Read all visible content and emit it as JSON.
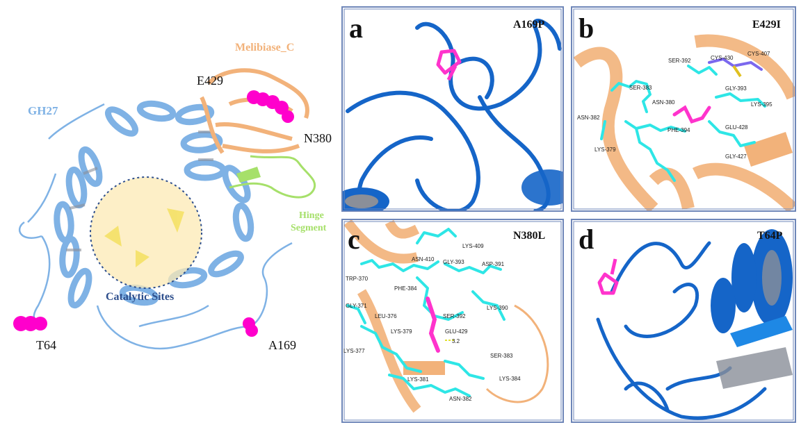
{
  "overview": {
    "domain_gh27": "GH27",
    "domain_melibiase": "Melibiase_C",
    "hinge_line1": "Hinge",
    "hinge_line2": "Segment",
    "catalytic": "Catalytic Sites",
    "mutation_e429": "E429",
    "mutation_n380": "N380",
    "mutation_t64": "T64",
    "mutation_a169": "A169"
  },
  "panels": [
    {
      "letter": "a",
      "mutation": "A169P",
      "residues": []
    },
    {
      "letter": "b",
      "mutation": "E429I",
      "residues": [
        "SER-392",
        "CYS-430",
        "CYS-407",
        "SER-383",
        "GLY-393",
        "ASN-380",
        "LYS-395",
        "ASN-382",
        "PHE-394",
        "GLU-428",
        "LYS-379",
        "GLY-427"
      ]
    },
    {
      "letter": "c",
      "mutation": "N380L",
      "residues": [
        "LYS-409",
        "ASN-410",
        "GLY-393",
        "ASP-391",
        "TRP-370",
        "PHE-384",
        "GLY-371",
        "LEU-376",
        "SER-392",
        "LYS-390",
        "LYS-379",
        "GLU-429",
        "3.2",
        "SER-383",
        "LYS-377",
        "LYS-381",
        "LYS-384",
        "ASN-382"
      ]
    },
    {
      "letter": "d",
      "mutation": "T64P",
      "residues": []
    }
  ],
  "colors": {
    "gh27": "#7fb2e5",
    "melibiase": "#f2b27a",
    "hinge": "#a6e06a",
    "mutation": "#ff00cc",
    "helix_blue": "#1565c8",
    "cyan_sticks": "#2ee6e6",
    "catalytic_fill": "#fce9b4"
  }
}
